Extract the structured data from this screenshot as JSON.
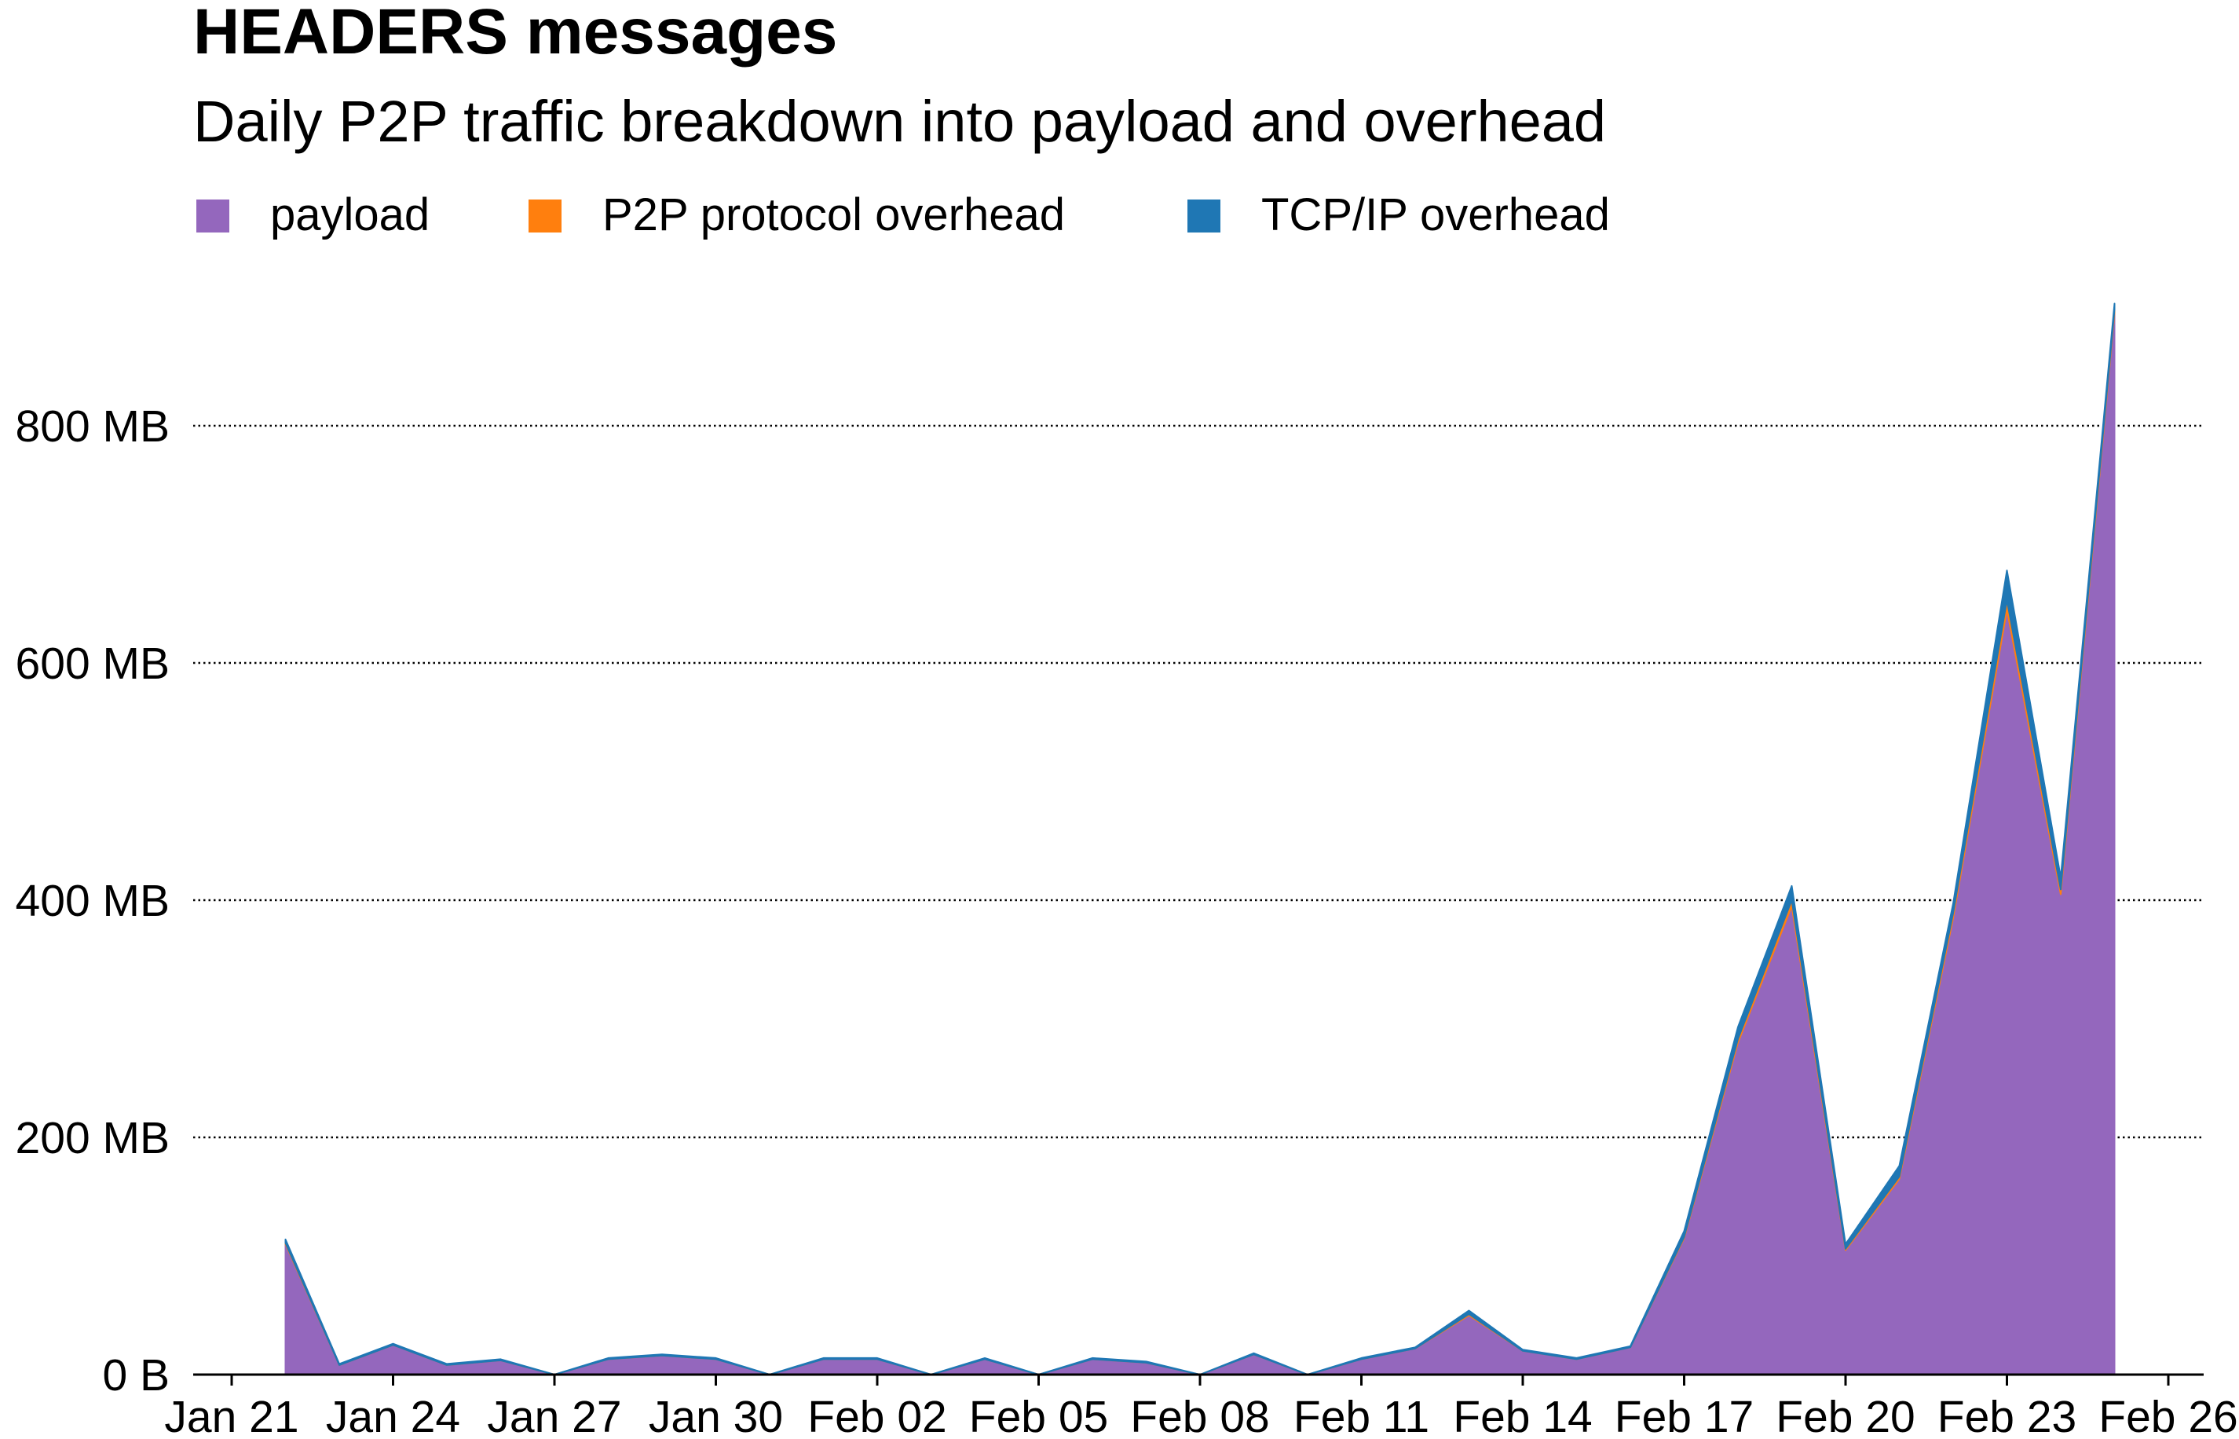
{
  "chart_data": {
    "type": "area",
    "stacked": true,
    "title": "HEADERS messages",
    "subtitle": "Daily P2P traffic breakdown into payload and overhead",
    "xlabel": "",
    "ylabel": "",
    "x": [
      "Jan 22",
      "Jan 23",
      "Jan 24",
      "Jan 25",
      "Jan 26",
      "Jan 27",
      "Jan 28",
      "Jan 29",
      "Jan 30",
      "Jan 31",
      "Feb 01",
      "Feb 02",
      "Feb 03",
      "Feb 04",
      "Feb 05",
      "Feb 06",
      "Feb 07",
      "Feb 08",
      "Feb 09",
      "Feb 10",
      "Feb 11",
      "Feb 12",
      "Feb 13",
      "Feb 14",
      "Feb 15",
      "Feb 16",
      "Feb 17",
      "Feb 18",
      "Feb 19",
      "Feb 20",
      "Feb 21",
      "Feb 22",
      "Feb 23",
      "Feb 24",
      "Feb 25"
    ],
    "series": [
      {
        "name": "payload",
        "color": "#9467bd",
        "values": [
          110,
          8,
          25,
          8,
          12,
          0,
          13,
          16,
          13,
          0,
          13,
          13,
          0,
          13,
          0,
          13,
          10,
          0,
          17,
          0,
          13,
          22,
          50,
          20,
          13,
          23,
          115,
          280,
          395,
          105,
          165,
          385,
          645,
          405,
          895
        ]
      },
      {
        "name": "P2P protocol overhead",
        "color": "#ff7f0e",
        "values": [
          1,
          0,
          0,
          0,
          0,
          0,
          0,
          0,
          0,
          0,
          0,
          0,
          0,
          0,
          0,
          0,
          0,
          0,
          0,
          0,
          0,
          0,
          1,
          0,
          0,
          0,
          1,
          3,
          5,
          1,
          2,
          4,
          8,
          4,
          3
        ]
      },
      {
        "name": "TCP/IP overhead",
        "color": "#1f77b4",
        "values": [
          3,
          1,
          1,
          1,
          1,
          0,
          1,
          1,
          1,
          0,
          1,
          1,
          0,
          1,
          0,
          1,
          1,
          0,
          1,
          0,
          1,
          1,
          3,
          1,
          1,
          1,
          5,
          10,
          12,
          4,
          9,
          8,
          25,
          10,
          5
        ]
      }
    ],
    "x_ticks": [
      "Jan 21",
      "Jan 24",
      "Jan 27",
      "Jan 30",
      "Feb 02",
      "Feb 05",
      "Feb 08",
      "Feb 11",
      "Feb 14",
      "Feb 17",
      "Feb 20",
      "Feb 23",
      "Feb 26"
    ],
    "y_ticks": [
      {
        "value": 0,
        "label": "0 B"
      },
      {
        "value": 200,
        "label": "200 MB"
      },
      {
        "value": 400,
        "label": "400 MB"
      },
      {
        "value": 600,
        "label": "600 MB"
      },
      {
        "value": 800,
        "label": "800 MB"
      }
    ],
    "y_unit": "MB",
    "ylim": [
      0,
      900
    ],
    "xlim": [
      "Jan 21",
      "Feb 26"
    ],
    "grid": "horizontal dotted",
    "legend_position": "top-left"
  }
}
